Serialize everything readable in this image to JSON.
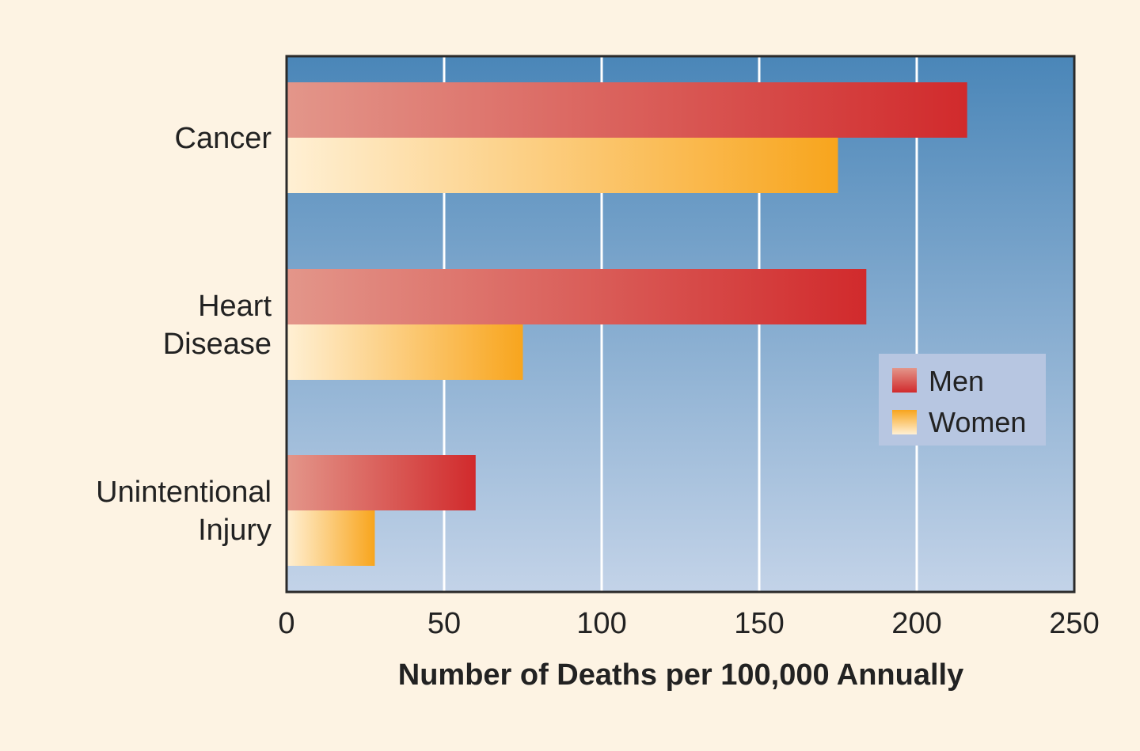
{
  "chart_data": {
    "type": "bar",
    "orientation": "horizontal",
    "title": "",
    "xlabel": "Number of Deaths per 100,000 Annually",
    "ylabel": "",
    "xlim": [
      0,
      250
    ],
    "x_ticks": [
      0,
      50,
      100,
      150,
      200,
      250
    ],
    "categories": [
      {
        "label_lines": [
          "Cancer"
        ]
      },
      {
        "label_lines": [
          "Heart",
          "Disease"
        ]
      },
      {
        "label_lines": [
          "Unintentional",
          "Injury"
        ]
      }
    ],
    "series": [
      {
        "name": "Men",
        "values": [
          216,
          184,
          60
        ]
      },
      {
        "name": "Women",
        "values": [
          175,
          75,
          28
        ]
      }
    ],
    "grid": true,
    "legend_position": "right"
  },
  "colors": {
    "page_background": "#fdf3e3",
    "plot_background_top": "#4a86b8",
    "plot_background_bottom": "#c3d3e8",
    "gridline": "#ffffff",
    "frame": "#2a2a2a",
    "men_light": "#e3968a",
    "men_dark": "#d12a2c",
    "women_light": "#fff0d4",
    "women_dark": "#f8a51d",
    "legend_background": "#b7c6e1",
    "text": "#222222"
  }
}
